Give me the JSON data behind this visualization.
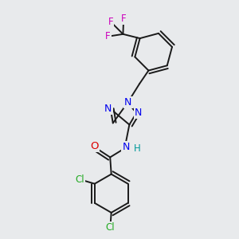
{
  "background_color": "#e8eaec",
  "bond_color": "#1a1a1a",
  "atom_colors": {
    "N": "#0000ee",
    "O": "#dd0000",
    "F": "#cc00bb",
    "Cl": "#22aa22",
    "H": "#009999",
    "C": "#1a1a1a"
  },
  "figsize": [
    3.0,
    3.0
  ],
  "dpi": 100
}
